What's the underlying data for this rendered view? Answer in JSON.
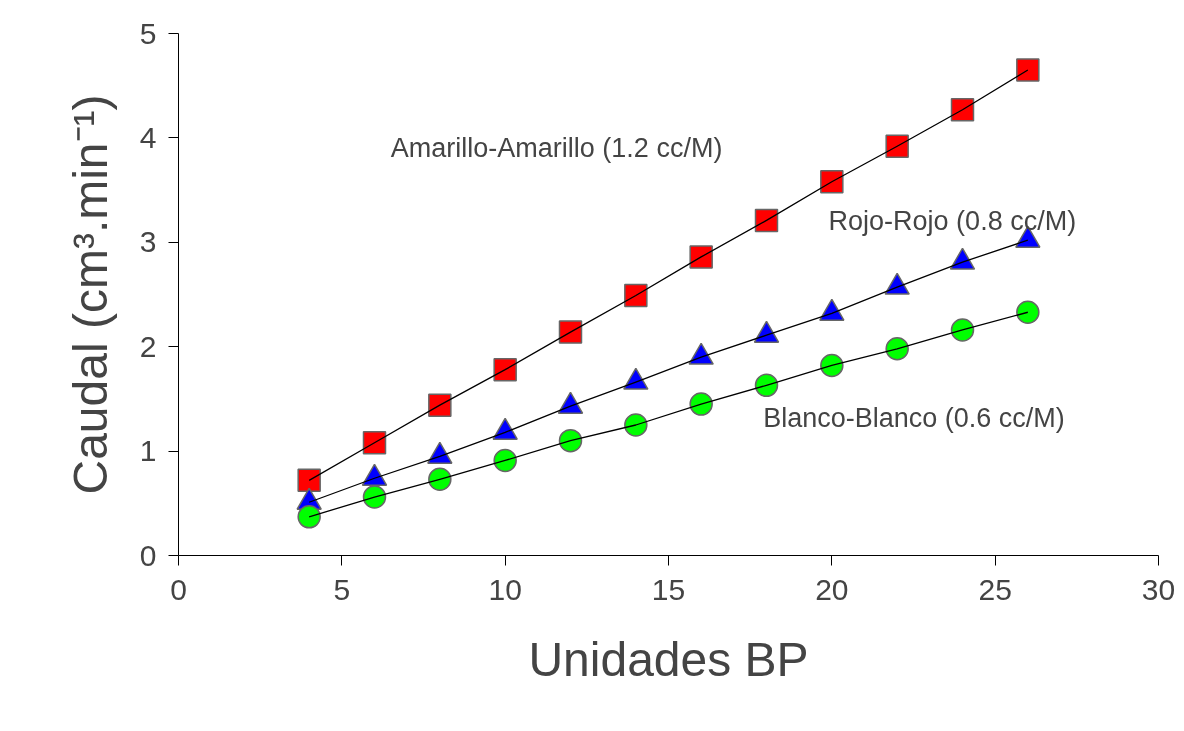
{
  "chart_data": {
    "type": "line",
    "xlabel": "Unidades BP",
    "ylabel": "Caudal (cm³.min⁻¹)",
    "x": [
      4,
      6,
      8,
      10,
      12,
      14,
      16,
      18,
      20,
      22,
      24,
      26
    ],
    "series": [
      {
        "name": "Amarillo-Amarillo (1.2 cc/M)",
        "color": "#ff0000",
        "marker": "square",
        "values": [
          0.72,
          1.08,
          1.44,
          1.78,
          2.14,
          2.49,
          2.86,
          3.21,
          3.58,
          3.92,
          4.27,
          4.65
        ]
      },
      {
        "name": "Rojo-Rojo (0.8 cc/M)",
        "color": "#0000ff",
        "marker": "triangle",
        "values": [
          0.51,
          0.74,
          0.95,
          1.18,
          1.43,
          1.66,
          1.9,
          2.11,
          2.32,
          2.57,
          2.81,
          3.02
        ]
      },
      {
        "name": "Blanco-Blanco (0.6 cc/M)",
        "color": "#00ff00",
        "marker": "circle",
        "values": [
          0.37,
          0.56,
          0.73,
          0.91,
          1.1,
          1.25,
          1.45,
          1.63,
          1.82,
          1.98,
          2.16,
          2.33
        ]
      }
    ],
    "xlim": [
      0,
      30
    ],
    "xticks": [
      0,
      5,
      10,
      15,
      20,
      25,
      30
    ],
    "ylim": [
      0,
      5
    ],
    "yticks": [
      0,
      1,
      2,
      3,
      4,
      5
    ],
    "grid": false,
    "line_style": "solid"
  }
}
